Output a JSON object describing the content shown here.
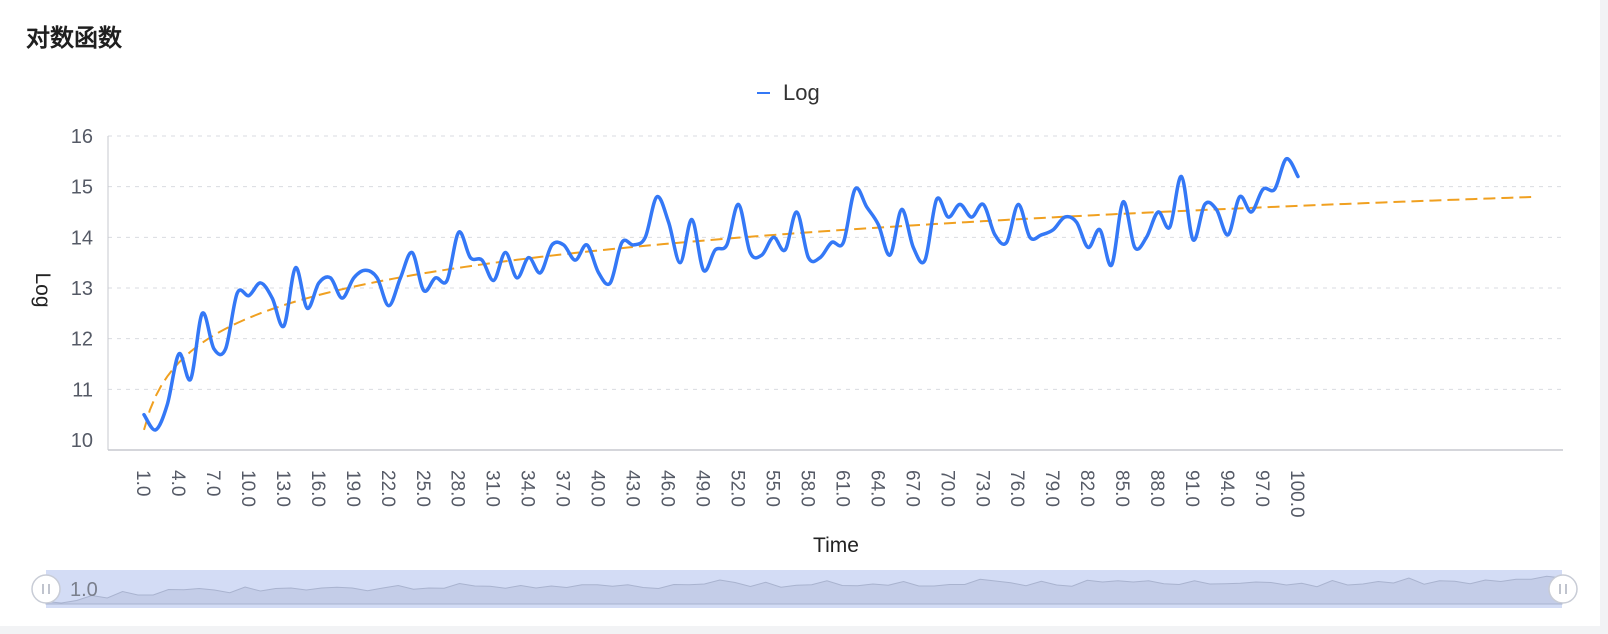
{
  "page": {
    "title": "对数函数"
  },
  "chart_data": {
    "type": "line",
    "title": "",
    "xlabel": "Time",
    "ylabel": "Log",
    "ylim": [
      10,
      16
    ],
    "y_ticks": [
      10,
      11,
      12,
      13,
      14,
      15,
      16
    ],
    "grid": true,
    "legend": {
      "position": "top-center",
      "entries": [
        "Log"
      ]
    },
    "x": [
      1.0,
      2.0,
      3.0,
      4.0,
      5.0,
      6.0,
      7.0,
      8.0,
      9.0,
      10.0,
      11.0,
      12.0,
      13.0,
      14.0,
      15.0,
      16.0,
      17.0,
      18.0,
      19.0,
      20.0,
      21.0,
      22.0,
      23.0,
      24.0,
      25.0,
      26.0,
      27.0,
      28.0,
      29.0,
      30.0,
      31.0,
      32.0,
      33.0,
      34.0,
      35.0,
      36.0,
      37.0,
      38.0,
      39.0,
      40.0,
      41.0,
      42.0,
      43.0,
      44.0,
      45.0,
      46.0,
      47.0,
      48.0,
      49.0,
      50.0,
      51.0,
      52.0,
      53.0,
      54.0,
      55.0,
      56.0,
      57.0,
      58.0,
      59.0,
      60.0,
      61.0,
      62.0,
      63.0,
      64.0,
      65.0,
      66.0,
      67.0,
      68.0,
      69.0,
      70.0,
      71.0,
      72.0,
      73.0,
      74.0,
      75.0,
      76.0,
      77.0,
      78.0,
      79.0,
      80.0,
      81.0,
      82.0,
      83.0,
      84.0,
      85.0,
      86.0,
      87.0,
      88.0,
      89.0,
      90.0,
      91.0,
      92.0,
      93.0,
      94.0,
      95.0,
      96.0,
      97.0,
      98.0,
      99.0,
      100.0
    ],
    "x_tick_labels": [
      "1.0",
      "4.0",
      "7.0",
      "10.0",
      "13.0",
      "16.0",
      "19.0",
      "22.0",
      "25.0",
      "28.0",
      "31.0",
      "34.0",
      "37.0",
      "40.0",
      "43.0",
      "46.0",
      "49.0",
      "52.0",
      "55.0",
      "58.0",
      "61.0",
      "64.0",
      "67.0",
      "70.0",
      "73.0",
      "76.0",
      "79.0",
      "82.0",
      "85.0",
      "88.0",
      "91.0",
      "94.0",
      "97.0",
      "100.0"
    ],
    "series": [
      {
        "name": "Log",
        "color": "#3478f6",
        "values": [
          10.5,
          10.2,
          10.7,
          11.7,
          11.2,
          12.5,
          11.8,
          11.8,
          12.9,
          12.85,
          13.1,
          12.8,
          12.25,
          13.4,
          12.6,
          13.1,
          13.2,
          12.8,
          13.2,
          13.35,
          13.2,
          12.65,
          13.2,
          13.7,
          12.95,
          13.2,
          13.15,
          14.1,
          13.6,
          13.55,
          13.15,
          13.7,
          13.2,
          13.6,
          13.3,
          13.85,
          13.85,
          13.55,
          13.85,
          13.3,
          13.1,
          13.9,
          13.85,
          14.0,
          14.8,
          14.3,
          13.5,
          14.35,
          13.35,
          13.75,
          13.85,
          14.65,
          13.7,
          13.65,
          14.0,
          13.75,
          14.5,
          13.6,
          13.6,
          13.9,
          13.9,
          14.95,
          14.6,
          14.25,
          13.65,
          14.55,
          13.8,
          13.55,
          14.75,
          14.4,
          14.65,
          14.4,
          14.65,
          14.05,
          13.9,
          14.65,
          14.0,
          14.05,
          14.15,
          14.4,
          14.3,
          13.8,
          14.15,
          13.45,
          14.7,
          13.8,
          14.0,
          14.5,
          14.2,
          15.2,
          13.95,
          14.65,
          14.55,
          14.05,
          14.8,
          14.5,
          14.95,
          14.95,
          15.55,
          15.2
        ]
      }
    ],
    "trendline": {
      "type": "logarithmic",
      "color": "#f0a020",
      "style": "dashed",
      "a": 10.2,
      "b": 0.96
    },
    "data_zoom": {
      "start_label": "1.0"
    }
  }
}
